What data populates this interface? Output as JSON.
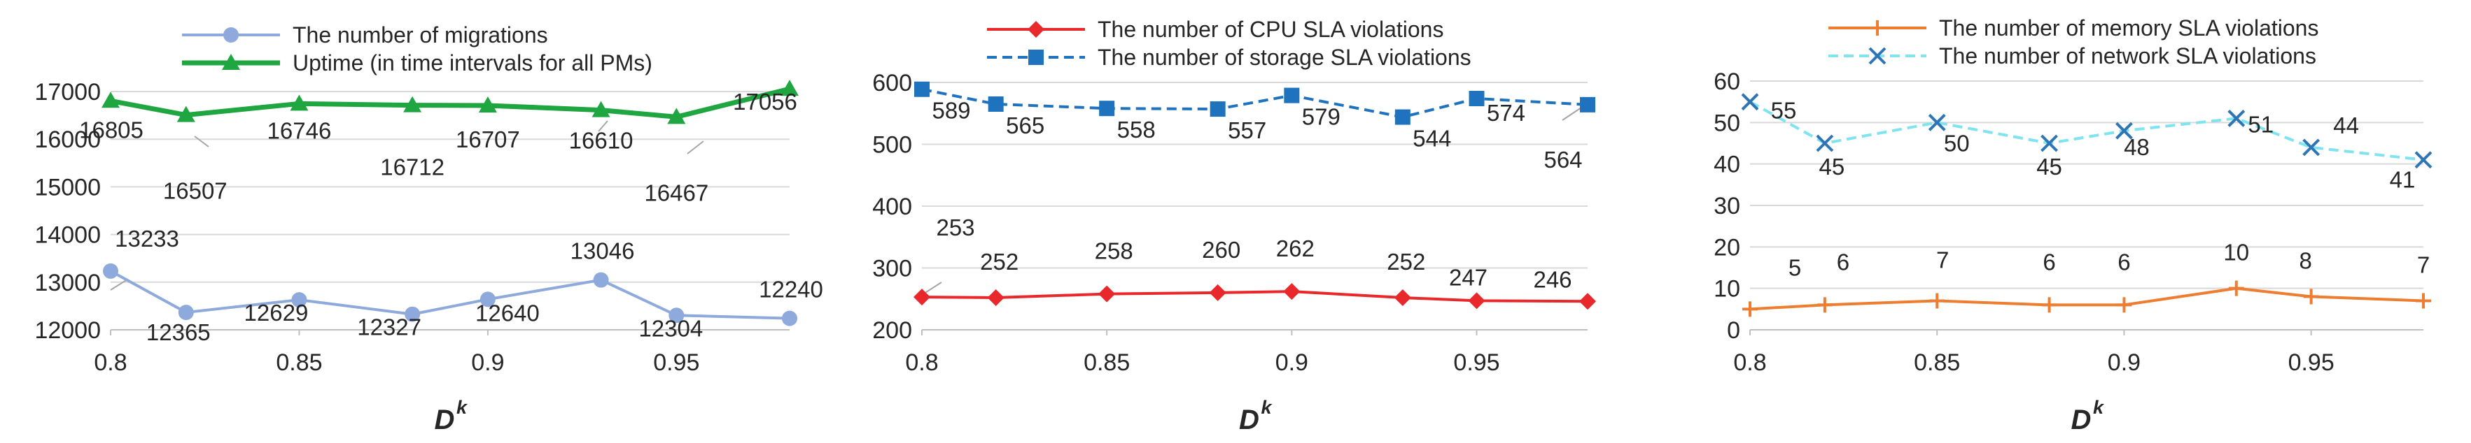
{
  "chart_data": [
    {
      "type": "line",
      "title": "",
      "xlabel": "D",
      "xlabel_superscript": "k",
      "ylabel": "",
      "x": [
        0.8,
        0.82,
        0.85,
        0.88,
        0.9,
        0.93,
        0.95,
        0.98
      ],
      "xlim": [
        0.8,
        0.98
      ],
      "xticks": [
        "0.8",
        "0.85",
        "0.9",
        "0.95"
      ],
      "ylim": [
        12000,
        17000
      ],
      "yticks": [
        "12000",
        "13000",
        "14000",
        "15000",
        "16000",
        "17000"
      ],
      "grid": true,
      "legend_position": "top-center",
      "series": [
        {
          "name": "The number of migrations",
          "color": "#8EA9DB",
          "marker": "circle",
          "dash": "solid",
          "values": [
            13233,
            12365,
            12629,
            12327,
            12640,
            13046,
            12304,
            12240
          ],
          "labels": [
            "13233",
            "12365",
            "12629",
            "12327",
            "12640",
            "13046",
            "12304",
            "12240"
          ]
        },
        {
          "name": "Uptime (in time intervals for all PMs)",
          "color": "#1FA641",
          "marker": "triangle",
          "dash": "solid",
          "values": [
            16805,
            16507,
            16746,
            16712,
            16707,
            16610,
            16467,
            17056
          ],
          "labels": [
            "16805",
            "16507",
            "16746",
            "16712",
            "16707",
            "16610",
            "16467",
            "17056"
          ]
        }
      ]
    },
    {
      "type": "line",
      "title": "",
      "xlabel": "D",
      "xlabel_superscript": "k",
      "ylabel": "",
      "x": [
        0.8,
        0.82,
        0.85,
        0.88,
        0.9,
        0.93,
        0.95,
        0.98
      ],
      "xlim": [
        0.8,
        0.98
      ],
      "xticks": [
        "0.8",
        "0.85",
        "0.9",
        "0.95"
      ],
      "ylim": [
        200,
        600
      ],
      "yticks": [
        "200",
        "300",
        "400",
        "500",
        "600"
      ],
      "grid": true,
      "legend_position": "top-center",
      "series": [
        {
          "name": "The number of CPU SLA violations",
          "color": "#E8282B",
          "marker": "diamond",
          "dash": "solid",
          "values": [
            253,
            252,
            258,
            260,
            262,
            252,
            247,
            246
          ],
          "labels": [
            "253",
            "252",
            "258",
            "260",
            "262",
            "252",
            "247",
            "246"
          ]
        },
        {
          "name": "The number of storage SLA violations",
          "color": "#1F73BE",
          "marker": "square",
          "dash": "dashed",
          "values": [
            589,
            565,
            558,
            557,
            579,
            544,
            574,
            564
          ],
          "labels": [
            "589",
            "565",
            "558",
            "557",
            "579",
            "544",
            "574",
            "564"
          ]
        }
      ]
    },
    {
      "type": "line",
      "title": "",
      "xlabel": "D",
      "xlabel_superscript": "k",
      "ylabel": "",
      "x": [
        0.8,
        0.82,
        0.85,
        0.88,
        0.9,
        0.93,
        0.95,
        0.98
      ],
      "xlim": [
        0.8,
        0.98
      ],
      "xticks": [
        "0.8",
        "0.85",
        "0.9",
        "0.95"
      ],
      "ylim": [
        0,
        60
      ],
      "yticks": [
        "0",
        "10",
        "20",
        "30",
        "40",
        "50",
        "60"
      ],
      "grid": true,
      "legend_position": "top-center",
      "series": [
        {
          "name": "The number of memory SLA violations",
          "color": "#ED7D31",
          "marker": "plus",
          "dash": "solid",
          "values": [
            5,
            6,
            7,
            6,
            6,
            10,
            8,
            7
          ],
          "labels": [
            "5",
            "6",
            "7",
            "6",
            "6",
            "10",
            "8",
            "7"
          ]
        },
        {
          "name": "The number of network SLA violations",
          "color": "#7FE3F0",
          "marker": "x",
          "dash": "dashed",
          "marker_color": "#2E75B6",
          "values": [
            55,
            45,
            50,
            45,
            48,
            51,
            44,
            41
          ],
          "labels": [
            "55",
            "45",
            "50",
            "45",
            "48",
            "51",
            "44",
            "41"
          ]
        }
      ]
    }
  ]
}
